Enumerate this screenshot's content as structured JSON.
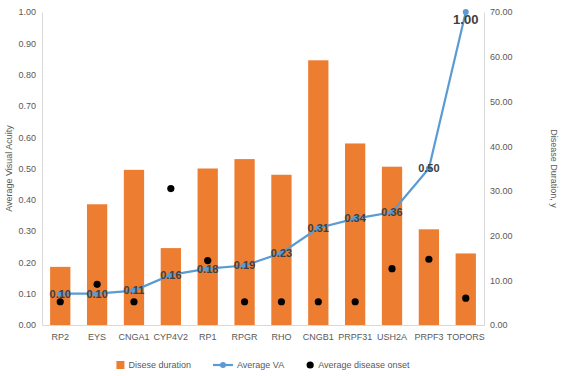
{
  "chart_data": {
    "type": "combo",
    "y_label": "Average Visual Acuity",
    "y2_label": "Disease Duration, y",
    "categories": [
      "RP2",
      "EYS",
      "CNGA1",
      "CYP4V2",
      "RP1",
      "RPGR",
      "RHO",
      "CNGB1",
      "PRPF31",
      "USH2A",
      "PRPF3",
      "TOPORS"
    ],
    "series": [
      {
        "name": "Disese duration",
        "type": "bar",
        "color": "#ED7D31",
        "axis": "y2",
        "values": [
          13.0,
          27.0,
          34.7,
          17.2,
          35.0,
          37.1,
          33.6,
          59.2,
          40.6,
          35.4,
          21.4,
          16.0
        ]
      },
      {
        "name": "Average VA",
        "type": "line",
        "color": "#5B9BD5",
        "marker": "circle",
        "data_labels": true,
        "values": [
          0.1,
          0.1,
          0.11,
          0.16,
          0.18,
          0.19,
          0.23,
          0.31,
          0.34,
          0.36,
          0.5,
          1.0
        ],
        "value_labels": [
          "0.10",
          "0.10",
          "0.11",
          "0.16",
          "0.18",
          "0.19",
          "0.23",
          "0.31",
          "0.34",
          "0.36",
          "0.50",
          "1.00"
        ]
      },
      {
        "name": "Average disease onset",
        "type": "scatter",
        "color": "#000000",
        "marker": "circle",
        "axis": "y2",
        "values": [
          5.2,
          9.1,
          5.2,
          30.5,
          14.4,
          5.2,
          5.2,
          5.2,
          5.2,
          12.6,
          14.7,
          6.0
        ]
      }
    ],
    "ylim": [
      0,
      1
    ],
    "yticks": [
      {
        "value": 0,
        "label": "0.00"
      },
      {
        "value": 0.1,
        "label": "0.10"
      },
      {
        "value": 0.2,
        "label": "0.20"
      },
      {
        "value": 0.3,
        "label": "0.30"
      },
      {
        "value": 0.4,
        "label": "0.40"
      },
      {
        "value": 0.5,
        "label": "0.50"
      },
      {
        "value": 0.6,
        "label": "0.60"
      },
      {
        "value": 0.7,
        "label": "0.70"
      },
      {
        "value": 0.8,
        "label": "0.80"
      },
      {
        "value": 0.9,
        "label": "0.90"
      },
      {
        "value": 1,
        "label": "1.00"
      }
    ],
    "y2lim": [
      0,
      70
    ],
    "y2ticks": [
      {
        "value": 0,
        "label": "0.00"
      },
      {
        "value": 10,
        "label": "10.00"
      },
      {
        "value": 20,
        "label": "20.00"
      },
      {
        "value": 30,
        "label": "30.00"
      },
      {
        "value": 40,
        "label": "40.00"
      },
      {
        "value": 50,
        "label": "50.00"
      },
      {
        "value": 60,
        "label": "60.00"
      },
      {
        "value": 70,
        "label": "70.00"
      }
    ],
    "grid": false,
    "legend": "bottom"
  }
}
